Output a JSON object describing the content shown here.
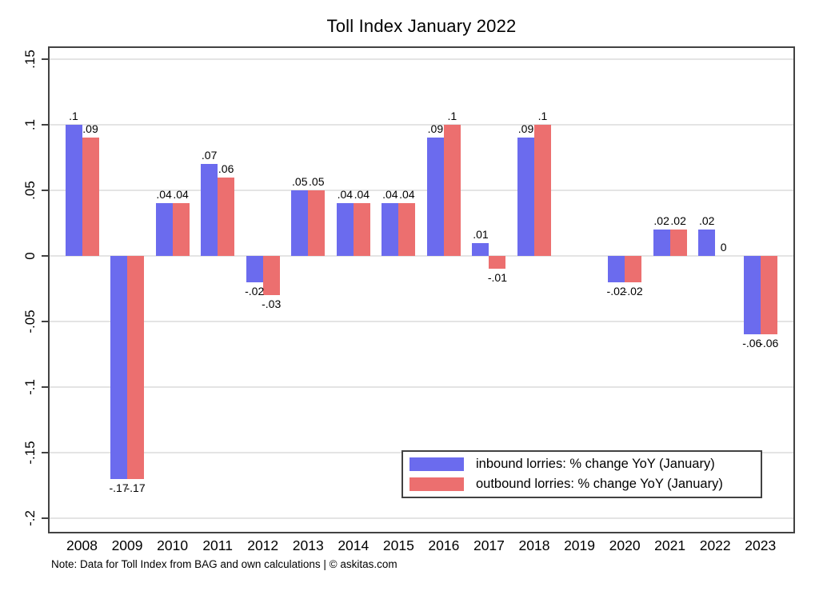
{
  "title": "Toll Index January 2022",
  "note": "Note: Data for Toll Index from BAG and own calculations | © askitas.com",
  "colors": {
    "inbound": "#6b6bee",
    "outbound": "#ec6f6f",
    "gridline": "#e4e4e4",
    "axis_border": "#424242"
  },
  "legend": {
    "items": [
      {
        "label": "inbound lorries: % change YoY (January)",
        "series": "inbound"
      },
      {
        "label": "outbound lorries: % change YoY (January)",
        "series": "outbound"
      }
    ]
  },
  "chart_data": {
    "type": "bar",
    "title": "Toll Index January 2022",
    "xlabel": "",
    "ylabel": "",
    "ylim": [
      -0.2116,
      0.1628
    ],
    "grid": true,
    "legend_position": "bottom-right-inside",
    "categories": [
      "2008",
      "2009",
      "2010",
      "2011",
      "2012",
      "2013",
      "2014",
      "2015",
      "2016",
      "2017",
      "2018",
      "2019",
      "2020",
      "2021",
      "2022",
      "2023"
    ],
    "y_axis": {
      "ticks": [
        {
          "label": ".15",
          "value": 0.15
        },
        {
          "label": ".1",
          "value": 0.1
        },
        {
          "label": ".05",
          "value": 0.05
        },
        {
          "label": "0",
          "value": 0.0
        },
        {
          "label": "-.05",
          "value": -0.05
        },
        {
          "label": "-.1",
          "value": -0.1
        },
        {
          "label": "-.15",
          "value": -0.15
        },
        {
          "label": "-.2",
          "value": -0.2
        }
      ]
    },
    "series": [
      {
        "name": "inbound lorries: % change YoY (January)",
        "color_key": "inbound",
        "values": [
          0.1,
          -0.17,
          0.04,
          0.07,
          -0.02,
          0.05,
          0.04,
          0.04,
          0.09,
          0.01,
          0.09,
          null,
          -0.02,
          0.02,
          0.02,
          -0.06
        ],
        "labels": [
          ".1",
          "-.17",
          ".04",
          ".07",
          "-.02",
          ".05",
          ".04",
          ".04",
          ".09",
          ".01",
          ".09",
          null,
          "-.02",
          ".02",
          ".02",
          "-.06"
        ]
      },
      {
        "name": "outbound lorries: % change YoY (January)",
        "color_key": "outbound",
        "values": [
          0.09,
          -0.17,
          0.04,
          0.06,
          -0.03,
          0.05,
          0.04,
          0.04,
          0.1,
          -0.01,
          0.1,
          null,
          -0.02,
          0.02,
          0.0,
          -0.06
        ],
        "labels": [
          ".09",
          "-.17",
          ".04",
          ".06",
          "-.03",
          ".05",
          ".04",
          ".04",
          ".1",
          "-.01",
          ".1",
          null,
          "-.02",
          ".02",
          "0",
          "-.06"
        ]
      }
    ]
  }
}
